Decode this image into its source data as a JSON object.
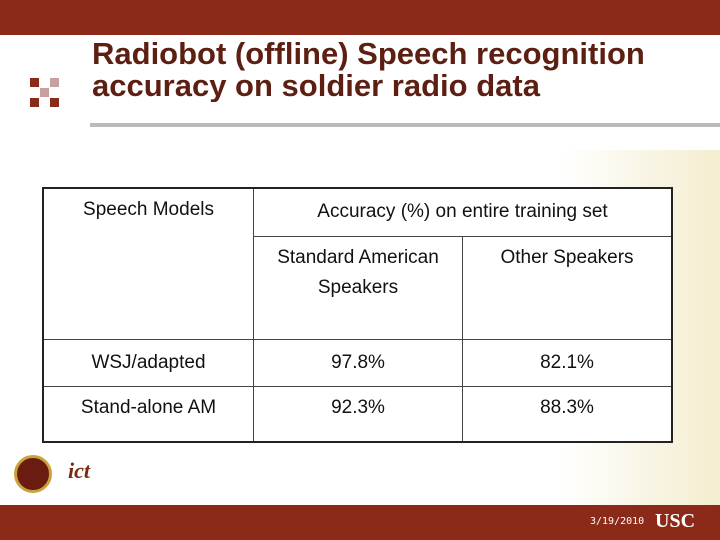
{
  "header": {
    "title_lines": [
      "Radiobot (offline) Speech recognition",
      "accuracy on soldier radio data"
    ]
  },
  "table": {
    "header": {
      "models": "Speech Models",
      "accuracy": "Accuracy (%) on entire training set"
    },
    "subheader": [
      "Standard American Speakers",
      "Other Speakers"
    ],
    "rows": [
      [
        "WSJ/adapted",
        "97.8%",
        "82.1%"
      ],
      [
        "Stand-alone AM",
        "92.3%",
        "88.3%"
      ]
    ]
  },
  "footer": {
    "date": "3/19/2010",
    "logo_left": "ict",
    "logo_right": "USC"
  }
}
